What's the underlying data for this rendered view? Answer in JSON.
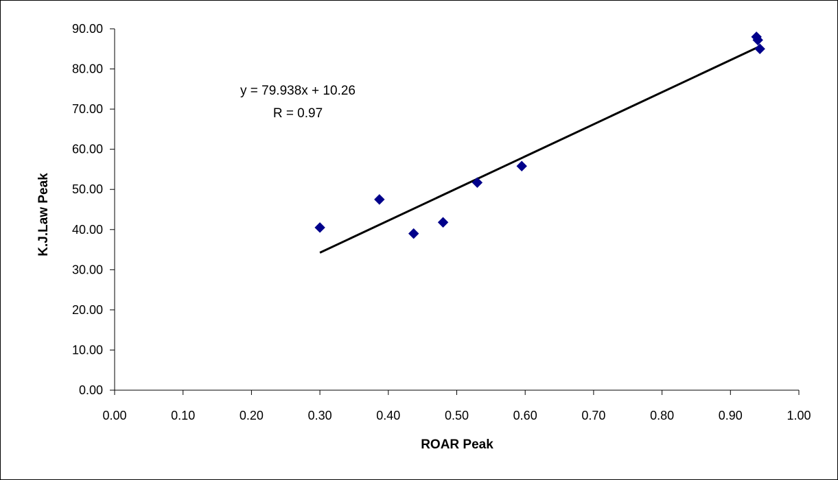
{
  "chart_data": {
    "type": "scatter",
    "title": "",
    "xlabel": "ROAR Peak",
    "ylabel": "K.J.Law Peak",
    "xlim": [
      0,
      1
    ],
    "ylim": [
      0,
      90
    ],
    "x_ticks": [
      "0.00",
      "0.10",
      "0.20",
      "0.30",
      "0.40",
      "0.50",
      "0.60",
      "0.70",
      "0.80",
      "0.90",
      "1.00"
    ],
    "y_ticks": [
      "0.00",
      "10.00",
      "20.00",
      "30.00",
      "40.00",
      "50.00",
      "60.00",
      "70.00",
      "80.00",
      "90.00"
    ],
    "grid": false,
    "legend": "none",
    "marker_color": "#00008B",
    "line_color": "#000000",
    "points": [
      {
        "x": 0.3,
        "y": 40.5
      },
      {
        "x": 0.387,
        "y": 47.5
      },
      {
        "x": 0.437,
        "y": 39.0
      },
      {
        "x": 0.48,
        "y": 41.8
      },
      {
        "x": 0.53,
        "y": 51.7
      },
      {
        "x": 0.595,
        "y": 55.8
      },
      {
        "x": 0.938,
        "y": 88.0
      },
      {
        "x": 0.94,
        "y": 87.2
      },
      {
        "x": 0.943,
        "y": 85.0
      }
    ],
    "trendline": {
      "slope": 79.938,
      "intercept": 10.26,
      "x_range": [
        0.3,
        0.943
      ]
    },
    "annotations": [
      "y = 79.938x + 10.26",
      "R = 0.97"
    ]
  }
}
